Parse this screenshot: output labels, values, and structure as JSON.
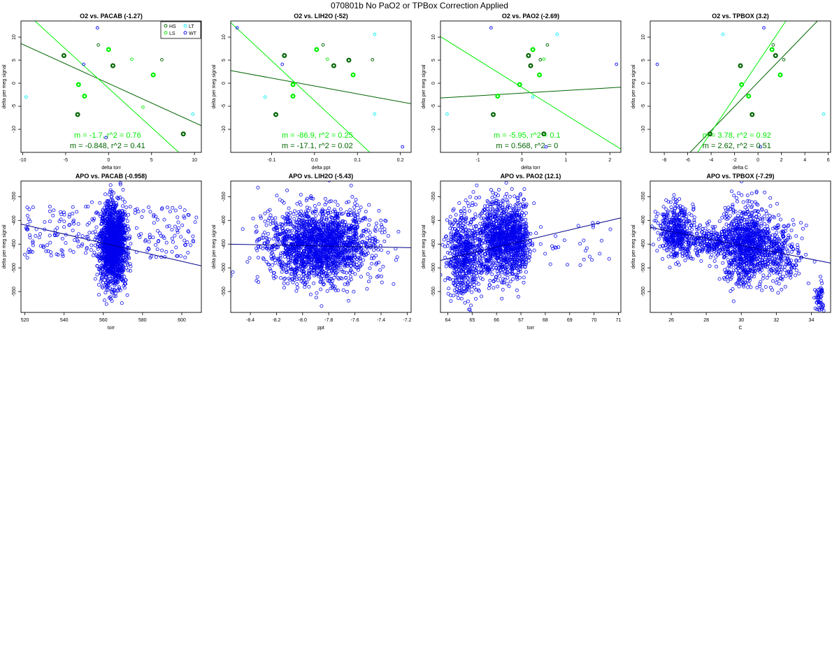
{
  "page": {
    "title": "070801b   No PaO2 or TPBox Correction Applied"
  },
  "colors": {
    "HS": "#006400",
    "LS": "#00ee00",
    "LT": "#00eeee",
    "WT": "#0000ee",
    "fit_dark": "#006400",
    "fit_light": "#00ee00",
    "fit_blue": "#00008b"
  },
  "chart_data": [
    {
      "type": "scatter",
      "title": "O2 vs. PACAB (-1.27)",
      "xlabel": "delta torr",
      "ylabel": "delta per meg signal",
      "xlim": [
        -10.2,
        10.8
      ],
      "ylim": [
        -15,
        13.5
      ],
      "xticks": [
        -10,
        -5,
        0,
        5,
        10
      ],
      "xtick_labels": [
        "-10",
        "-5",
        "0",
        "5",
        "10"
      ],
      "yticks": [
        -10,
        -5,
        0,
        5,
        10
      ],
      "ytick_labels": [
        "-10",
        "-5",
        "0",
        "5",
        "10"
      ],
      "legend": {
        "placement": "top-right",
        "entries": [
          {
            "label": "HS",
            "group": "HS"
          },
          {
            "label": "LT",
            "group": "LT"
          },
          {
            "label": "LS",
            "group": "LS"
          },
          {
            "label": "WT",
            "group": "WT"
          }
        ]
      },
      "series": [
        {
          "name": "HS",
          "group": "HS",
          "points": [
            [
              -5.2,
              6
            ],
            [
              0.5,
              3.8
            ],
            [
              -3.6,
              -6.8
            ],
            [
              8.7,
              -11
            ],
            [
              6.2,
              5.1
            ],
            [
              -1.2,
              8.3
            ]
          ]
        },
        {
          "name": "LS",
          "group": "LS",
          "points": [
            [
              0,
              7.3
            ],
            [
              -3.5,
              -0.3
            ],
            [
              -2.8,
              -2.8
            ],
            [
              5.2,
              1.8
            ],
            [
              2.7,
              5.2
            ],
            [
              4,
              -5.2
            ]
          ]
        },
        {
          "name": "LT",
          "group": "LT",
          "points": [
            [
              -9.6,
              -3
            ],
            [
              9.8,
              -6.7
            ]
          ]
        },
        {
          "name": "WT",
          "group": "WT",
          "points": [
            [
              -1.3,
              12
            ],
            [
              -2.9,
              4.1
            ],
            [
              -0.3,
              -11.8
            ]
          ]
        }
      ],
      "fits": [
        {
          "group": "fit_dark",
          "slope": -0.848,
          "intercept": -0.05
        },
        {
          "group": "fit_light",
          "slope": -1.7,
          "intercept": -1.1
        }
      ],
      "annotations": [
        {
          "text": "m = -1.7, r^2 = 0.76",
          "group": "fit_light"
        },
        {
          "text": "m = -0.848, r^2 = 0.41",
          "group": "fit_dark"
        }
      ]
    },
    {
      "type": "scatter",
      "title": "O2 vs. LIH2O (-52)",
      "xlabel": "delta ppt",
      "ylabel": "delta per meg signal",
      "xlim": [
        -0.195,
        0.225
      ],
      "ylim": [
        -15,
        13.5
      ],
      "xticks": [
        -0.1,
        0.0,
        0.1,
        0.2
      ],
      "xtick_labels": [
        "-0.1",
        "0.0",
        "0.1",
        "0.2"
      ],
      "yticks": [
        -10,
        -5,
        0,
        5,
        10
      ],
      "ytick_labels": [
        "-10",
        "-5",
        "0",
        "5",
        "10"
      ],
      "legend": null,
      "series": [
        {
          "name": "HS",
          "group": "HS",
          "points": [
            [
              -0.07,
              6
            ],
            [
              0.045,
              3.8
            ],
            [
              -0.09,
              -6.8
            ],
            [
              0.08,
              5
            ],
            [
              0.135,
              5.1
            ],
            [
              0.02,
              8.3
            ]
          ]
        },
        {
          "name": "LS",
          "group": "LS",
          "points": [
            [
              0.005,
              7.3
            ],
            [
              -0.05,
              -0.3
            ],
            [
              -0.05,
              -2.8
            ],
            [
              0.09,
              1.8
            ],
            [
              0.03,
              5.2
            ]
          ]
        },
        {
          "name": "LT",
          "group": "LT",
          "points": [
            [
              0.14,
              10.6
            ],
            [
              -0.115,
              -3
            ],
            [
              0.14,
              -6.7
            ]
          ]
        },
        {
          "name": "WT",
          "group": "WT",
          "points": [
            [
              -0.18,
              12
            ],
            [
              -0.075,
              4.1
            ],
            [
              0.205,
              -13.8
            ]
          ]
        }
      ],
      "fits": [
        {
          "group": "fit_dark",
          "slope": -17.1,
          "intercept": -0.6
        },
        {
          "group": "fit_light",
          "slope": -86.9,
          "intercept": -3.8
        }
      ],
      "annotations": [
        {
          "text": "m = -86.9, r^2 = 0.25",
          "group": "fit_light"
        },
        {
          "text": "m = -17.1, r^2 = 0.02",
          "group": "fit_dark"
        }
      ]
    },
    {
      "type": "scatter",
      "title": "O2 vs. PAO2 (-2.69)",
      "xlabel": "delta torr",
      "ylabel": "delta per meg signal",
      "xlim": [
        -1.85,
        2.25
      ],
      "ylim": [
        -15,
        13.5
      ],
      "xticks": [
        -1,
        0,
        1,
        2
      ],
      "xtick_labels": [
        "-1",
        "0",
        "1",
        "2"
      ],
      "yticks": [
        -10,
        -5,
        0,
        5,
        10
      ],
      "ytick_labels": [
        "-10",
        "-5",
        "0",
        "5",
        "10"
      ],
      "legend": null,
      "series": [
        {
          "name": "HS",
          "group": "HS",
          "points": [
            [
              0.15,
              6
            ],
            [
              0.2,
              3.8
            ],
            [
              -0.65,
              -6.8
            ],
            [
              0.5,
              -11
            ],
            [
              0.42,
              5.1
            ],
            [
              0.58,
              8.3
            ]
          ]
        },
        {
          "name": "LS",
          "group": "LS",
          "points": [
            [
              0.25,
              7.3
            ],
            [
              -0.05,
              -0.3
            ],
            [
              -0.55,
              -2.8
            ],
            [
              0.4,
              1.8
            ],
            [
              0.5,
              5.2
            ]
          ]
        },
        {
          "name": "LT",
          "group": "LT",
          "points": [
            [
              0.8,
              10.6
            ],
            [
              -1.7,
              -6.7
            ],
            [
              0.25,
              -3
            ]
          ]
        },
        {
          "name": "WT",
          "group": "WT",
          "points": [
            [
              -0.7,
              12
            ],
            [
              2.15,
              4.1
            ],
            [
              0.55,
              -13.8
            ]
          ]
        }
      ],
      "fits": [
        {
          "group": "fit_dark",
          "slope": 0.568,
          "intercept": -2.15
        },
        {
          "group": "fit_light",
          "slope": -5.95,
          "intercept": -0.9
        }
      ],
      "annotations": [
        {
          "text": "m = -5.95, r^2 = 0.1",
          "group": "fit_light"
        },
        {
          "text": "m = 0.568, r^2 = 0",
          "group": "fit_dark"
        }
      ]
    },
    {
      "type": "scatter",
      "title": "O2 vs. TPBOX (3.2)",
      "xlabel": "delta C",
      "ylabel": "delta per meg signal",
      "xlim": [
        -9.2,
        6.2
      ],
      "ylim": [
        -15,
        13.5
      ],
      "xticks": [
        -8,
        -6,
        -4,
        -2,
        0,
        2,
        4,
        6
      ],
      "xtick_labels": [
        "-8",
        "-6",
        "-4",
        "-2",
        "0",
        "2",
        "4",
        "6"
      ],
      "yticks": [
        -10,
        -5,
        0,
        5,
        10
      ],
      "ytick_labels": [
        "-10",
        "-5",
        "0",
        "5",
        "10"
      ],
      "legend": null,
      "series": [
        {
          "name": "HS",
          "group": "HS",
          "points": [
            [
              -1.5,
              3.8
            ],
            [
              -0.5,
              -6.8
            ],
            [
              -4.1,
              -11
            ],
            [
              1.5,
              6
            ],
            [
              2.2,
              5.1
            ],
            [
              1.3,
              8.3
            ]
          ]
        },
        {
          "name": "LS",
          "group": "LS",
          "points": [
            [
              1.2,
              7.3
            ],
            [
              -1.4,
              -0.3
            ],
            [
              -0.8,
              -2.8
            ],
            [
              1.9,
              1.8
            ]
          ]
        },
        {
          "name": "LT",
          "group": "LT",
          "points": [
            [
              -3.0,
              10.6
            ],
            [
              5.6,
              -6.7
            ]
          ]
        },
        {
          "name": "WT",
          "group": "WT",
          "points": [
            [
              0.5,
              12
            ],
            [
              -8.6,
              4.1
            ],
            [
              0.2,
              -13.8
            ]
          ]
        }
      ],
      "fits": [
        {
          "group": "fit_dark",
          "slope": 2.62,
          "intercept": 0.2
        },
        {
          "group": "fit_light",
          "slope": 3.78,
          "intercept": 4.5
        }
      ],
      "annotations": [
        {
          "text": "m = 3.78, r^2 = 0.92",
          "group": "fit_light"
        },
        {
          "text": "m = 2.62, r^2 = 0.51",
          "group": "fit_dark"
        }
      ]
    },
    {
      "type": "scatter",
      "title": "APO vs. PACAB (-0.958)",
      "xlabel": "torr",
      "ylabel": "delta per meg signal",
      "xlim": [
        518,
        610
      ],
      "ylim": [
        -594,
        -317
      ],
      "xticks": [
        520,
        540,
        560,
        580,
        600
      ],
      "xtick_labels": [
        "520",
        "540",
        "560",
        "580",
        "600"
      ],
      "yticks": [
        -550,
        -500,
        -450,
        -400,
        -350
      ],
      "ytick_labels": [
        "-550",
        "-500",
        "-450",
        "-400",
        "-350"
      ],
      "legend": null,
      "cloud": {
        "count": 1900,
        "core": {
          "x_mean": 565,
          "x_sd": 3.2,
          "y_mean": -450,
          "y_sd": 42
        },
        "spread": {
          "x_min": 520,
          "x_max": 608,
          "y_min": -480,
          "y_max": -370
        },
        "spread_fraction": 0.13
      },
      "fits": [
        {
          "group": "fit_blue",
          "slope": -0.958,
          "intercept": 88.5
        }
      ],
      "annotations": []
    },
    {
      "type": "scatter",
      "title": "APO vs. LIH2O (-5.43)",
      "xlabel": "ppt",
      "ylabel": "delta per meg signal",
      "xlim": [
        -8.55,
        -7.17
      ],
      "ylim": [
        -594,
        -317
      ],
      "xticks": [
        -8.4,
        -8.2,
        -8.0,
        -7.8,
        -7.6,
        -7.4,
        -7.2
      ],
      "xtick_labels": [
        "-8.4",
        "-8.2",
        "-8.0",
        "-7.8",
        "-7.6",
        "-7.4",
        "-7.2"
      ],
      "yticks": [
        -550,
        -500,
        -450,
        -400,
        -350
      ],
      "ytick_labels": [
        "-550",
        "-500",
        "-450",
        "-400",
        "-350"
      ],
      "legend": null,
      "cloud": {
        "count": 2000,
        "core": {
          "x_mean": -7.87,
          "x_sd": 0.2,
          "y_mean": -452,
          "y_sd": 38
        },
        "spread": null,
        "spread_fraction": 0
      },
      "fits": [
        {
          "group": "fit_blue",
          "slope": -5.43,
          "intercept": -496.5
        }
      ],
      "annotations": []
    },
    {
      "type": "scatter",
      "title": "APO vs. PAO2 (12.1)",
      "xlabel": "torr",
      "ylabel": "delta per meg signal",
      "xlim": [
        63.7,
        71.1
      ],
      "ylim": [
        -594,
        -317
      ],
      "xticks": [
        64,
        65,
        66,
        67,
        68,
        69,
        70,
        71
      ],
      "xtick_labels": [
        "64",
        "65",
        "66",
        "67",
        "68",
        "69",
        "70",
        "71"
      ],
      "yticks": [
        -550,
        -500,
        -450,
        -400,
        -350
      ],
      "ytick_labels": [
        "-550",
        "-500",
        "-450",
        "-400",
        "-350"
      ],
      "legend": null,
      "cloud": {
        "count": 1900,
        "clusters": [
          {
            "x_mean": 64.7,
            "x_sd": 0.35,
            "y_mean": -475,
            "y_sd": 45,
            "w": 0.3
          },
          {
            "x_mean": 66.0,
            "x_sd": 0.35,
            "y_mean": -440,
            "y_sd": 40,
            "w": 0.4
          },
          {
            "x_mean": 66.8,
            "x_sd": 0.3,
            "y_mean": -440,
            "y_sd": 38,
            "w": 0.3
          }
        ],
        "spread": {
          "x_min": 67.8,
          "x_max": 70.9,
          "y_min": -500,
          "y_max": -400
        },
        "spread_fraction": 0.015
      },
      "fits": [
        {
          "group": "fit_blue",
          "slope": 12.1,
          "intercept": -1255
        }
      ],
      "annotations": []
    },
    {
      "type": "scatter",
      "title": "APO vs. TPBOX (-7.29)",
      "xlabel": "C",
      "ylabel": "delta per meg signal",
      "xlim": [
        24.8,
        35.1
      ],
      "ylim": [
        -594,
        -317
      ],
      "xticks": [
        26,
        28,
        30,
        32,
        34
      ],
      "xtick_labels": [
        "26",
        "28",
        "30",
        "32",
        "34"
      ],
      "yticks": [
        -550,
        -500,
        -450,
        -400,
        -350
      ],
      "ytick_labels": [
        "-550",
        "-500",
        "-450",
        "-400",
        "-350"
      ],
      "legend": null,
      "cloud": {
        "count": 2000,
        "clusters": [
          {
            "x_mean": 26.3,
            "x_sd": 0.5,
            "y_mean": -425,
            "y_sd": 28,
            "w": 0.22
          },
          {
            "x_mean": 28.2,
            "x_sd": 0.8,
            "y_mean": -445,
            "y_sd": 15,
            "w": 0.12
          },
          {
            "x_mean": 30.3,
            "x_sd": 0.7,
            "y_mean": -450,
            "y_sd": 40,
            "w": 0.5
          },
          {
            "x_mean": 32.2,
            "x_sd": 0.6,
            "y_mean": -470,
            "y_sd": 30,
            "w": 0.13
          },
          {
            "x_mean": 34.5,
            "x_sd": 0.12,
            "y_mean": -560,
            "y_sd": 18,
            "w": 0.03
          }
        ],
        "spread": null,
        "spread_fraction": 0
      },
      "fits": [
        {
          "group": "fit_blue",
          "slope": -7.29,
          "intercept": -234
        }
      ],
      "annotations": []
    }
  ]
}
